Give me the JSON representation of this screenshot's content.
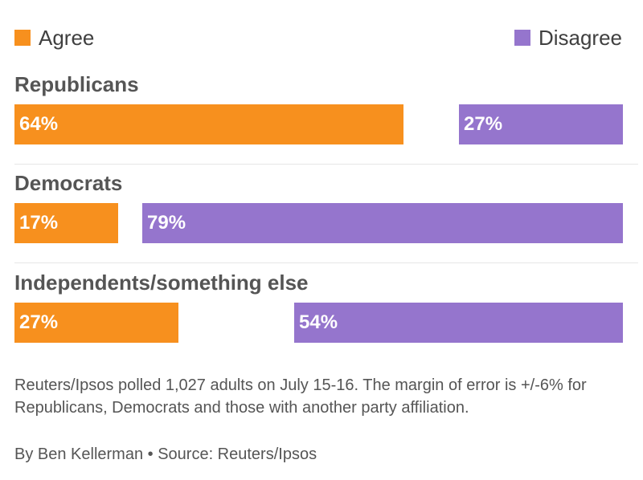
{
  "legend": {
    "agree_label": "Agree",
    "disagree_label": "Disagree"
  },
  "colors": {
    "agree": "#f7901e",
    "disagree": "#9575cd"
  },
  "chart_data": {
    "type": "bar",
    "orientation": "horizontal",
    "categories": [
      "Republicans",
      "Democrats",
      "Independents/something else"
    ],
    "series": [
      {
        "name": "Agree",
        "values": [
          64,
          17,
          27
        ],
        "labels": [
          "64%",
          "17%",
          "27%"
        ]
      },
      {
        "name": "Disagree",
        "values": [
          27,
          79,
          54
        ],
        "labels": [
          "27%",
          "79%",
          "54%"
        ]
      }
    ],
    "unit": "%",
    "xlim": [
      0,
      100
    ],
    "legend_position": "top"
  },
  "footer": {
    "note": "Reuters/Ipsos polled 1,027 adults on July 15-16. The margin of error is +/-6% for Republicans, Democrats and those with another party affiliation.",
    "credit": "By Ben Kellerman • Source: Reuters/Ipsos"
  }
}
